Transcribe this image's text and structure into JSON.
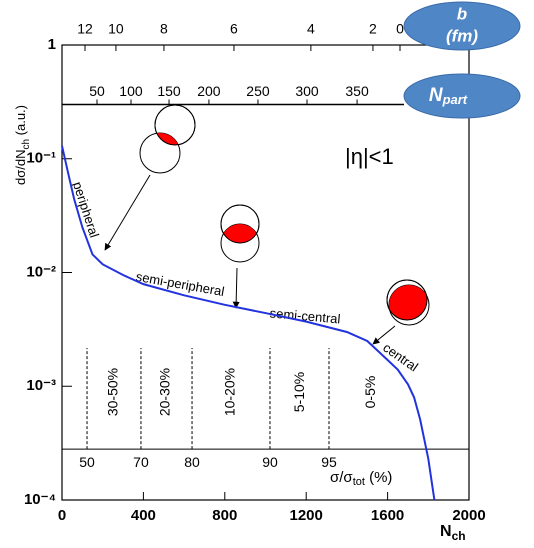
{
  "chart_data": {
    "type": "line",
    "log_y": true,
    "xlim": [
      0,
      2000
    ],
    "ylim": [
      0.0001,
      1
    ],
    "xticks": [
      0,
      400,
      800,
      1200,
      1600,
      2000
    ],
    "yticks": [
      {
        "value": 1,
        "label": "1"
      },
      {
        "value": 0.1,
        "label": "10⁻¹"
      },
      {
        "value": 0.01,
        "label": "10⁻²"
      },
      {
        "value": 0.001,
        "label": "10⁻³"
      },
      {
        "value": 0.0001,
        "label": "10⁻⁴"
      }
    ],
    "x_label": [
      "N",
      "ch"
    ],
    "y_label": [
      "dσ/dN",
      "ch",
      " (a.u.)"
    ],
    "series": [
      {
        "name": "dσ/dNch",
        "color": "#2233dd",
        "x": [
          0,
          30,
          60,
          100,
          150,
          200,
          300,
          400,
          600,
          800,
          1000,
          1200,
          1400,
          1500,
          1600,
          1650,
          1700,
          1730,
          1760,
          1800,
          1830
        ],
        "values": [
          0.13,
          0.075,
          0.044,
          0.025,
          0.0144,
          0.0118,
          0.0095,
          0.0079,
          0.0063,
          0.0052,
          0.0044,
          0.0037,
          0.003,
          0.0025,
          0.0017,
          0.0014,
          0.00104,
          0.0008,
          0.00051,
          0.00023,
          0.0001
        ]
      }
    ],
    "annotation": "|η|<1",
    "region_labels": [
      "peripheral",
      "semi-peripheral",
      "semi-central",
      "central"
    ],
    "b_axis": {
      "label": [
        "b",
        "(fm)"
      ],
      "ticks": [
        {
          "value": 12,
          "at": 113
        },
        {
          "value": 10,
          "at": 265
        },
        {
          "value": 8,
          "at": 501
        },
        {
          "value": 6,
          "at": 845
        },
        {
          "value": 4,
          "at": 1223
        },
        {
          "value": 2,
          "at": 1528
        },
        {
          "value": 0,
          "at": 1661
        }
      ]
    },
    "npart_axis": {
      "label": [
        "N",
        "part"
      ],
      "level": 0.3,
      "ticks": [
        {
          "value": 50,
          "at": 172
        },
        {
          "value": 100,
          "at": 339
        },
        {
          "value": 150,
          "at": 526
        },
        {
          "value": 200,
          "at": 722
        },
        {
          "value": 250,
          "at": 963
        },
        {
          "value": 300,
          "at": 1204
        },
        {
          "value": 350,
          "at": 1450
        }
      ]
    },
    "centrality_axis": {
      "label": [
        "σ/σ",
        "tot",
        " (%)"
      ],
      "level": 0.00028,
      "ticks": [
        {
          "value": 50,
          "at": 123
        },
        {
          "value": 70,
          "at": 388
        },
        {
          "value": 80,
          "at": 639
        },
        {
          "value": 90,
          "at": 1022
        },
        {
          "value": 95,
          "at": 1312
        }
      ],
      "classes": [
        {
          "label": "30-50%",
          "at": 255
        },
        {
          "label": "20-30%",
          "at": 510
        },
        {
          "label": "10-20%",
          "at": 830
        },
        {
          "label": "5-10%",
          "at": 1170
        },
        {
          "label": "0-5%",
          "at": 1520
        }
      ]
    }
  }
}
